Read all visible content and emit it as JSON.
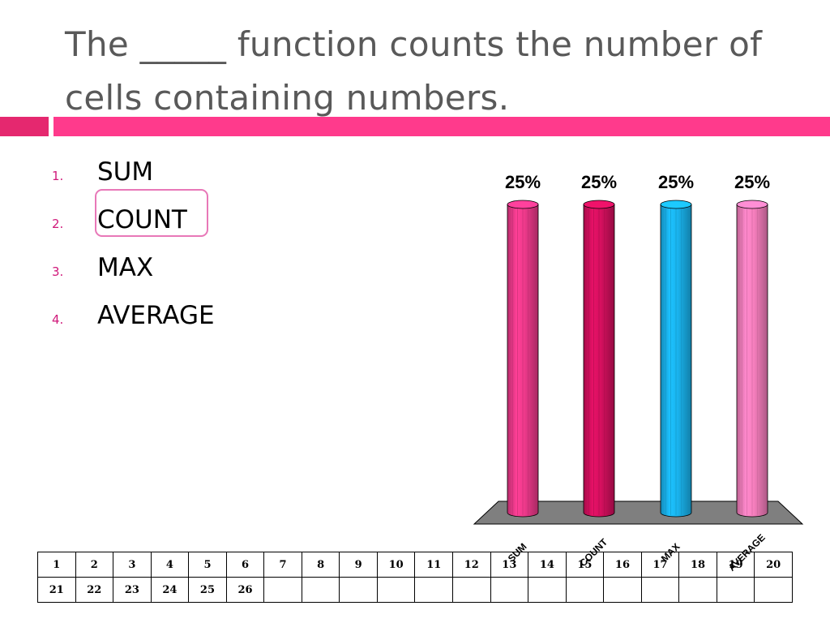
{
  "slide": {
    "question": "The _____ function counts the number of cells containing numbers."
  },
  "options": [
    {
      "number": "1.",
      "label": "SUM"
    },
    {
      "number": "2.",
      "label": "COUNT"
    },
    {
      "number": "3.",
      "label": "MAX"
    },
    {
      "number": "4.",
      "label": "AVERAGE"
    }
  ],
  "highlighted_option": "COUNT",
  "colors": {
    "accent": "#ff3a8c",
    "accent_dark": "#e5286f",
    "number_color": "#d0197a",
    "title_color": "#595959",
    "highlight_border": "#e878b8"
  },
  "chart_data": {
    "type": "bar",
    "categories": [
      "SUM",
      "COUNT",
      "MAX",
      "AVERAGE"
    ],
    "values": [
      25,
      25,
      25,
      25
    ],
    "value_labels": [
      "25%",
      "25%",
      "25%",
      "25%"
    ],
    "colors": [
      "#ef3a8c",
      "#d6105f",
      "#1ab4ee",
      "#f77fbe"
    ],
    "ylim": [
      0,
      25
    ],
    "grid": false,
    "legend": "none",
    "style": "3d-cylinder"
  },
  "response_grid": {
    "rows": [
      [
        "1",
        "2",
        "3",
        "4",
        "5",
        "6",
        "7",
        "8",
        "9",
        "10",
        "11",
        "12",
        "13",
        "14",
        "15",
        "16",
        "17",
        "18",
        "19",
        "20"
      ],
      [
        "21",
        "22",
        "23",
        "24",
        "25",
        "26",
        "",
        "",
        "",
        "",
        "",
        "",
        "",
        "",
        "",
        "",
        "",
        "",
        "",
        ""
      ]
    ]
  }
}
